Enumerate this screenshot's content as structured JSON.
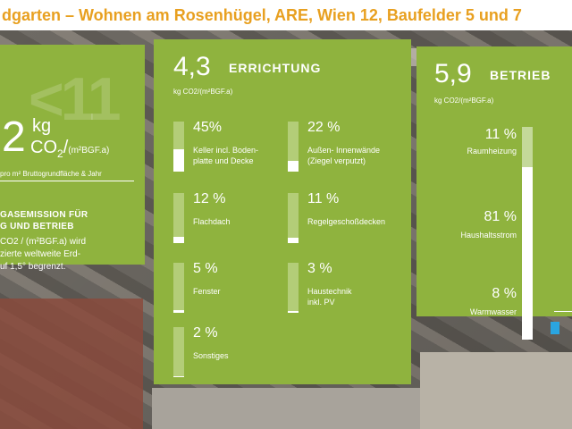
{
  "header": {
    "title": "dgarten – Wohnen am Rosenhügel, ARE, Wien 12, Baufelder 5 und 7"
  },
  "total": {
    "watermark": "<11",
    "value": "2",
    "unit_kg": "kg",
    "unit_co2_main": "CO",
    "unit_co2_sub": "2",
    "unit_co2_tail": "/",
    "unit_area": "(m²BGF.a)",
    "area_note": "pro m² Bruttogrundfläche & Jahr",
    "emission_title": "GASEMISSION FÜR\nG UND BETRIEB",
    "emission_text": "CO2 / (m²BGF.a) wird\nzierte weltweite Erd-\nuf 1,5° begrenzt."
  },
  "construction": {
    "value": "4,3",
    "label": "ERRICHTUNG",
    "unit": "kg CO2/(m²BGF.a)",
    "items": [
      {
        "percent": "45%",
        "share": 45,
        "label": "Keller incl. Boden-\nplatte und Decke"
      },
      {
        "percent": "22 %",
        "share": 22,
        "label": "Außen- Innenwände\n(Ziegel verputzt)"
      },
      {
        "percent": "12 %",
        "share": 12,
        "label": "Flachdach"
      },
      {
        "percent": "11 %",
        "share": 11,
        "label": "Regelgeschoßdecken"
      },
      {
        "percent": "5 %",
        "share": 5,
        "label": "Fenster"
      },
      {
        "percent": "3 %",
        "share": 3,
        "label": "Haustechnik\ninkl. PV"
      },
      {
        "percent": "2 %",
        "share": 2,
        "label": "Sonstiges"
      }
    ]
  },
  "operation": {
    "value": "5,9",
    "label": "BETRIEB",
    "unit": "kg CO2/(m²BGF.a)",
    "items": [
      {
        "percent": "11 %",
        "share": 11,
        "label": "Raumheizung"
      },
      {
        "percent": "81 %",
        "share": 81,
        "label": "Haushaltsstrom"
      },
      {
        "percent": "8 %",
        "share": 8,
        "label": "Warmwasser"
      }
    ],
    "marker_color": "#2aa5e0"
  },
  "colors": {
    "panel": "#8fb33e",
    "title": "#e8a020",
    "bar_track": "#b3cd78"
  }
}
